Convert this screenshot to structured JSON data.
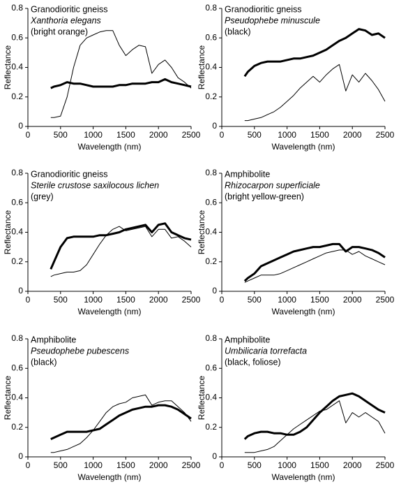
{
  "chart_data": [
    {
      "type": "line",
      "annotations": [
        "Granodioritic gneiss",
        "Xanthoria elegans",
        "(bright orange)"
      ],
      "xlabel": "Wavelength (nm)",
      "ylabel": "Reflectance",
      "xlim": [
        0,
        2500
      ],
      "xticks": [
        0,
        500,
        1000,
        1500,
        2000,
        2500
      ],
      "ylim": [
        0,
        0.8
      ],
      "yticks": [
        0,
        0.2,
        0.4,
        0.6,
        0.8
      ],
      "x": [
        350,
        400,
        500,
        600,
        700,
        800,
        900,
        1000,
        1100,
        1200,
        1300,
        1400,
        1500,
        1600,
        1700,
        1800,
        1900,
        2000,
        2100,
        2200,
        2300,
        2400,
        2500
      ],
      "series": [
        {
          "color": "#000000",
          "line_width": 3,
          "values": [
            0.26,
            0.27,
            0.28,
            0.3,
            0.29,
            0.29,
            0.28,
            0.27,
            0.27,
            0.27,
            0.27,
            0.28,
            0.28,
            0.29,
            0.29,
            0.29,
            0.3,
            0.3,
            0.32,
            0.3,
            0.29,
            0.28,
            0.27
          ]
        },
        {
          "color": "#000000",
          "line_width": 1,
          "values": [
            0.06,
            0.06,
            0.07,
            0.2,
            0.4,
            0.55,
            0.6,
            0.62,
            0.64,
            0.65,
            0.65,
            0.55,
            0.48,
            0.52,
            0.55,
            0.54,
            0.36,
            0.42,
            0.45,
            0.4,
            0.33,
            0.3,
            0.26
          ]
        }
      ]
    },
    {
      "type": "line",
      "annotations": [
        "Granodioritic gneiss",
        "Pseudophebe minuscule",
        "(black)"
      ],
      "xlabel": "Wavelength (nm)",
      "ylabel": "Reflectance",
      "xlim": [
        0,
        2500
      ],
      "xticks": [
        0,
        500,
        1000,
        1500,
        2000,
        2500
      ],
      "ylim": [
        0,
        0.8
      ],
      "yticks": [
        0,
        0.2,
        0.4,
        0.6,
        0.8
      ],
      "x": [
        350,
        400,
        500,
        600,
        700,
        800,
        900,
        1000,
        1100,
        1200,
        1300,
        1400,
        1500,
        1600,
        1700,
        1800,
        1900,
        2000,
        2100,
        2200,
        2300,
        2400,
        2500
      ],
      "series": [
        {
          "color": "#000000",
          "line_width": 3,
          "values": [
            0.34,
            0.37,
            0.41,
            0.43,
            0.44,
            0.44,
            0.44,
            0.45,
            0.46,
            0.46,
            0.47,
            0.48,
            0.5,
            0.52,
            0.55,
            0.58,
            0.6,
            0.63,
            0.66,
            0.65,
            0.62,
            0.63,
            0.6
          ]
        },
        {
          "color": "#000000",
          "line_width": 1,
          "values": [
            0.04,
            0.04,
            0.05,
            0.06,
            0.08,
            0.1,
            0.13,
            0.17,
            0.21,
            0.26,
            0.3,
            0.34,
            0.3,
            0.35,
            0.39,
            0.42,
            0.24,
            0.35,
            0.3,
            0.36,
            0.31,
            0.25,
            0.17
          ]
        }
      ]
    },
    {
      "type": "line",
      "annotations": [
        "Granodioritic gneiss",
        "Sterile crustose saxilocous lichen",
        "(grey)"
      ],
      "xlabel": "Wavelength (nm)",
      "ylabel": "Reflectance",
      "xlim": [
        0,
        2500
      ],
      "xticks": [
        0,
        500,
        1000,
        1500,
        2000,
        2500
      ],
      "ylim": [
        0,
        0.8
      ],
      "yticks": [
        0,
        0.2,
        0.4,
        0.6,
        0.8
      ],
      "x": [
        350,
        400,
        500,
        600,
        700,
        800,
        900,
        1000,
        1100,
        1200,
        1300,
        1400,
        1500,
        1600,
        1700,
        1800,
        1900,
        2000,
        2100,
        2200,
        2300,
        2400,
        2500
      ],
      "series": [
        {
          "color": "#000000",
          "line_width": 3,
          "values": [
            0.15,
            0.2,
            0.3,
            0.36,
            0.37,
            0.37,
            0.37,
            0.37,
            0.38,
            0.38,
            0.39,
            0.4,
            0.42,
            0.43,
            0.44,
            0.45,
            0.4,
            0.45,
            0.46,
            0.4,
            0.38,
            0.36,
            0.35
          ]
        },
        {
          "color": "#000000",
          "line_width": 1,
          "values": [
            0.1,
            0.11,
            0.12,
            0.13,
            0.13,
            0.14,
            0.18,
            0.25,
            0.32,
            0.38,
            0.42,
            0.44,
            0.41,
            0.42,
            0.43,
            0.44,
            0.37,
            0.42,
            0.42,
            0.36,
            0.37,
            0.34,
            0.3
          ]
        }
      ]
    },
    {
      "type": "line",
      "annotations": [
        "Amphibolite",
        "Rhizocarpon superficiale",
        "(bright yellow-green)"
      ],
      "xlabel": "Wavelength (nm)",
      "ylabel": "Reflectance",
      "xlim": [
        0,
        2500
      ],
      "xticks": [
        0,
        500,
        1000,
        1500,
        2000,
        2500
      ],
      "ylim": [
        0,
        0.8
      ],
      "yticks": [
        0,
        0.2,
        0.4,
        0.6,
        0.8
      ],
      "x": [
        350,
        400,
        500,
        600,
        700,
        800,
        900,
        1000,
        1100,
        1200,
        1300,
        1400,
        1500,
        1600,
        1700,
        1800,
        1900,
        2000,
        2100,
        2200,
        2300,
        2400,
        2500
      ],
      "series": [
        {
          "color": "#000000",
          "line_width": 3,
          "values": [
            0.07,
            0.09,
            0.12,
            0.17,
            0.19,
            0.21,
            0.23,
            0.25,
            0.27,
            0.28,
            0.29,
            0.3,
            0.3,
            0.31,
            0.32,
            0.32,
            0.27,
            0.3,
            0.3,
            0.29,
            0.28,
            0.26,
            0.23
          ]
        },
        {
          "color": "#000000",
          "line_width": 1,
          "values": [
            0.06,
            0.07,
            0.09,
            0.11,
            0.11,
            0.11,
            0.12,
            0.14,
            0.16,
            0.18,
            0.2,
            0.22,
            0.24,
            0.26,
            0.27,
            0.28,
            0.28,
            0.25,
            0.27,
            0.24,
            0.22,
            0.2,
            0.18
          ]
        }
      ]
    },
    {
      "type": "line",
      "annotations": [
        "Amphibolite",
        "Pseudophebe pubescens",
        "(black)"
      ],
      "xlabel": "Wavelength (nm)",
      "ylabel": "Reflectance",
      "xlim": [
        0,
        2500
      ],
      "xticks": [
        0,
        500,
        1000,
        1500,
        2000,
        2500
      ],
      "ylim": [
        0,
        0.8
      ],
      "yticks": [
        0,
        0.2,
        0.4,
        0.6,
        0.8
      ],
      "x": [
        350,
        400,
        500,
        600,
        700,
        800,
        900,
        1000,
        1100,
        1200,
        1300,
        1400,
        1500,
        1600,
        1700,
        1800,
        1900,
        2000,
        2100,
        2200,
        2300,
        2400,
        2500
      ],
      "series": [
        {
          "color": "#000000",
          "line_width": 3,
          "values": [
            0.12,
            0.13,
            0.15,
            0.17,
            0.17,
            0.17,
            0.17,
            0.18,
            0.19,
            0.22,
            0.25,
            0.28,
            0.3,
            0.32,
            0.33,
            0.34,
            0.34,
            0.35,
            0.35,
            0.34,
            0.32,
            0.29,
            0.26
          ]
        },
        {
          "color": "#000000",
          "line_width": 1,
          "values": [
            0.03,
            0.03,
            0.04,
            0.05,
            0.07,
            0.09,
            0.13,
            0.18,
            0.24,
            0.3,
            0.34,
            0.36,
            0.37,
            0.4,
            0.41,
            0.42,
            0.35,
            0.37,
            0.38,
            0.38,
            0.34,
            0.3,
            0.24
          ]
        }
      ]
    },
    {
      "type": "line",
      "annotations": [
        "Amphibolite",
        "Umbilicaria torrefacta",
        "(black, foliose)"
      ],
      "xlabel": "Wavelength (nm)",
      "ylabel": "Reflectance",
      "xlim": [
        0,
        2500
      ],
      "xticks": [
        0,
        500,
        1000,
        1500,
        2000,
        2500
      ],
      "ylim": [
        0,
        0.8
      ],
      "yticks": [
        0,
        0.2,
        0.4,
        0.6,
        0.8
      ],
      "x": [
        350,
        400,
        500,
        600,
        700,
        800,
        900,
        1000,
        1100,
        1200,
        1300,
        1400,
        1500,
        1600,
        1700,
        1800,
        1900,
        2000,
        2100,
        2200,
        2300,
        2400,
        2500
      ],
      "series": [
        {
          "color": "#000000",
          "line_width": 3,
          "values": [
            0.12,
            0.14,
            0.16,
            0.17,
            0.17,
            0.16,
            0.16,
            0.15,
            0.15,
            0.17,
            0.2,
            0.25,
            0.3,
            0.34,
            0.38,
            0.41,
            0.42,
            0.43,
            0.41,
            0.38,
            0.35,
            0.32,
            0.3
          ]
        },
        {
          "color": "#000000",
          "line_width": 1,
          "values": [
            0.03,
            0.03,
            0.03,
            0.04,
            0.05,
            0.07,
            0.11,
            0.15,
            0.19,
            0.22,
            0.25,
            0.28,
            0.31,
            0.32,
            0.35,
            0.38,
            0.23,
            0.3,
            0.27,
            0.3,
            0.27,
            0.24,
            0.16
          ]
        }
      ]
    }
  ]
}
